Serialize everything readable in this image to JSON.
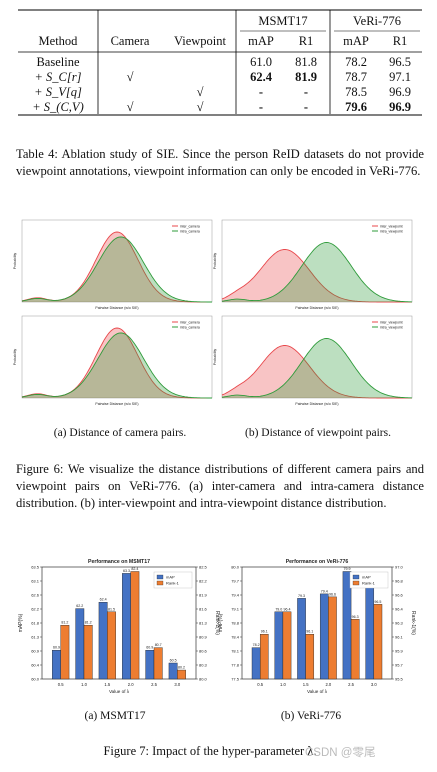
{
  "table": {
    "headers": {
      "method": "Method",
      "camera": "Camera",
      "viewpoint": "Viewpoint",
      "msmt": "MSMT17",
      "veri": "VeRi-776",
      "map1": "mAP",
      "r11": "R1",
      "map2": "mAP",
      "r12": "R1"
    },
    "rows": [
      {
        "method": "Baseline",
        "cam": "",
        "vp": "",
        "m1": "61.0",
        "r1": "81.8",
        "m2": "78.2",
        "r2": "96.5"
      },
      {
        "method": "+ S_C[r]",
        "cam": "√",
        "vp": "",
        "m1": "62.4",
        "r1": "81.9",
        "m2": "78.7",
        "r2": "97.1"
      },
      {
        "method": "+ S_V[q]",
        "cam": "",
        "vp": "√",
        "m1": "-",
        "r1": "-",
        "m2": "78.5",
        "r2": "96.9"
      },
      {
        "method": "+ S_(C,V)",
        "cam": "√",
        "vp": "√",
        "m1": "-",
        "r1": "-",
        "m2": "79.6",
        "r2": "96.9"
      }
    ]
  },
  "table_caption": "Table 4:  Ablation study of SIE. Since the person ReID datasets do not provide viewpoint annotations, viewpoint information can only be encoded in VeRi-776.",
  "fig6": {
    "sub_a": "(a) Distance of camera pairs.",
    "sub_b": "(b) Distance of viewpoint pairs.",
    "caption": "Figure 6:  We visualize the distance distributions of different camera pairs and viewpoint pairs on VeRi-776. (a) inter-camera and intra-camera distance distribution. (b) inter-viewpoint and intra-viewpoint distance distribution.",
    "panel_xlabel": "Pairwise Distance (w/o SIE)",
    "panel_ylabel": "Probability",
    "legend_cam": [
      "inter_camera",
      "intra_camera"
    ],
    "legend_vp": [
      "inter_viewpoint",
      "intra_viewpoint"
    ]
  },
  "fig7": {
    "sub_a": "(a) MSMT17",
    "sub_b": "(b) VeRi-776",
    "caption": "Figure 7: Impact of the hyper-parameter λ.",
    "watermark": "CSDN @零尾"
  },
  "chart_data": [
    {
      "type": "bar",
      "title": "Performance on MSMT17",
      "categories": [
        "0.5",
        "1.0",
        "1.5",
        "2.0",
        "2.5",
        "3.0"
      ],
      "xlabel": "Value of λ",
      "ylabel": "mAP(%)",
      "y2label": "Rank-1(%)",
      "ylim": [
        60.0,
        63.5
      ],
      "y2lim": [
        80.0,
        82.5
      ],
      "series": [
        {
          "name": "mAP",
          "axis": "left",
          "color": "#4472c4",
          "values": [
            60.9,
            62.2,
            62.4,
            63.3,
            60.9,
            60.5
          ]
        },
        {
          "name": "Rank-1",
          "axis": "right",
          "color": "#ed7d31",
          "values": [
            81.2,
            81.2,
            81.5,
            82.4,
            80.7,
            80.2
          ]
        }
      ]
    },
    {
      "type": "bar",
      "title": "Performance on VeRi-776",
      "categories": [
        "0.5",
        "1.0",
        "1.5",
        "2.0",
        "2.5",
        "3.0"
      ],
      "xlabel": "Value of λ",
      "ylabel": "mAP(%)",
      "y2label": "Rank-1(%)",
      "ylim": [
        77.5,
        80.0
      ],
      "y2lim": [
        95.5,
        97.0
      ],
      "series": [
        {
          "name": "mAP",
          "axis": "left",
          "color": "#4472c4",
          "values": [
            78.2,
            79.0,
            79.3,
            79.4,
            79.9,
            79.6
          ]
        },
        {
          "name": "Rank-1",
          "axis": "right",
          "color": "#ed7d31",
          "values": [
            96.1,
            96.4,
            96.1,
            96.6,
            96.3,
            96.5
          ]
        }
      ]
    }
  ]
}
